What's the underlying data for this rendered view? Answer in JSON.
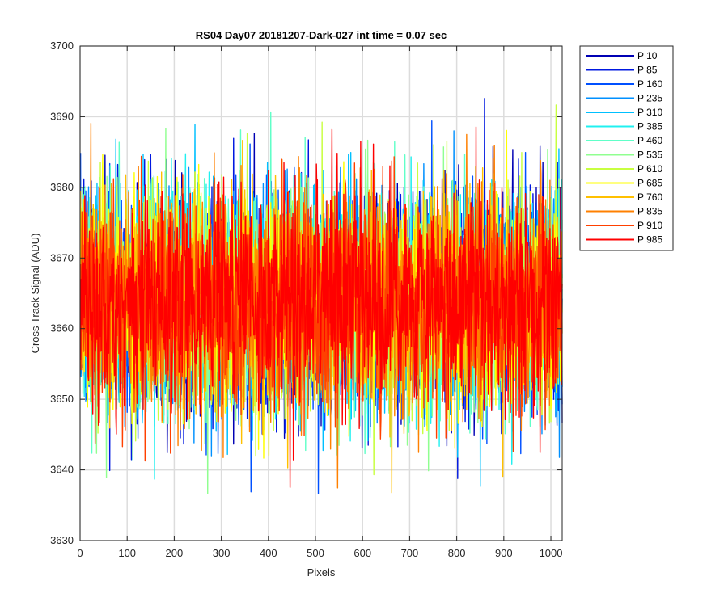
{
  "chart_data": {
    "type": "line",
    "title": "RS04 Day07 20181207-Dark-027 int time = 0.07 sec",
    "xlabel": "Pixels",
    "ylabel": "Cross Track Signal (ADU)",
    "xlim": [
      0,
      1024
    ],
    "ylim": [
      3630,
      3700
    ],
    "xticks": [
      0,
      100,
      200,
      300,
      400,
      500,
      600,
      700,
      800,
      900,
      1000
    ],
    "yticks": [
      3630,
      3640,
      3650,
      3660,
      3670,
      3680,
      3690,
      3700
    ],
    "grid": true,
    "legend_position": "outside-top-right",
    "noise_model": {
      "mean": 3664,
      "std": 7.5,
      "min": 3636,
      "max": 3694
    },
    "series": [
      {
        "name": "P 10",
        "color": "#0000b4"
      },
      {
        "name": "P 85",
        "color": "#0018e0"
      },
      {
        "name": "P 160",
        "color": "#0050ff"
      },
      {
        "name": "P 235",
        "color": "#0090ff"
      },
      {
        "name": "P 310",
        "color": "#00c0ff"
      },
      {
        "name": "P 385",
        "color": "#20f0f0"
      },
      {
        "name": "P 460",
        "color": "#60ffc8"
      },
      {
        "name": "P 535",
        "color": "#90ff90"
      },
      {
        "name": "P 610",
        "color": "#c8ff40"
      },
      {
        "name": "P 685",
        "color": "#ffff00"
      },
      {
        "name": "P 760",
        "color": "#ffc000"
      },
      {
        "name": "P 835",
        "color": "#ff8000"
      },
      {
        "name": "P 910",
        "color": "#ff4000"
      },
      {
        "name": "P 985",
        "color": "#ff0000"
      }
    ]
  }
}
